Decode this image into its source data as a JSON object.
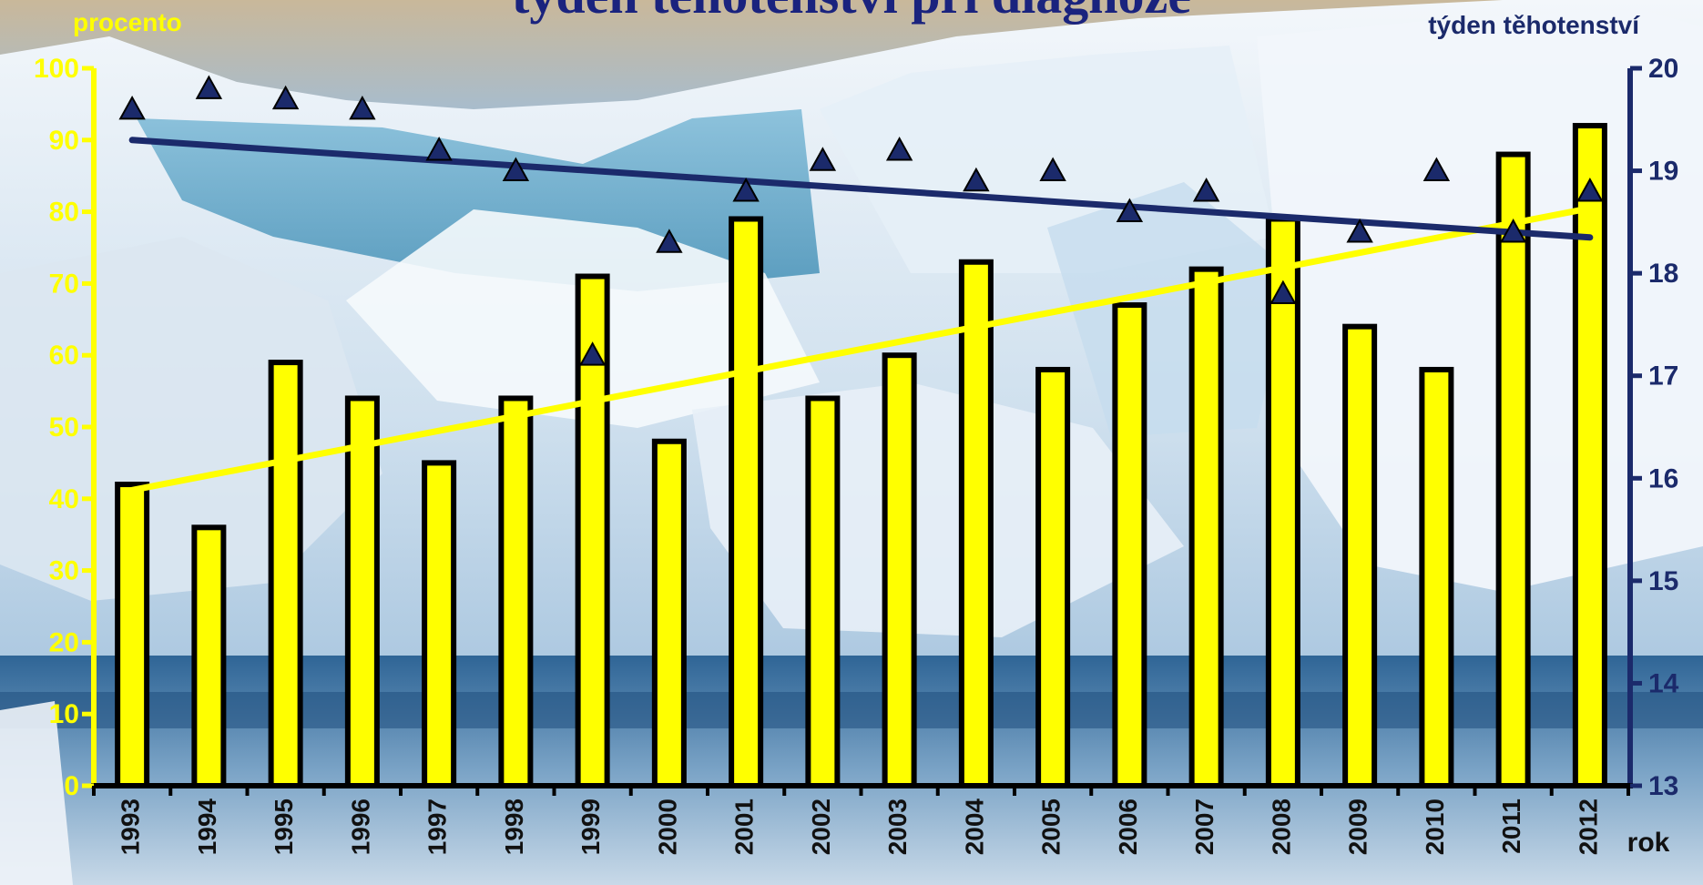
{
  "colors": {
    "bar_fill": "#ffff00",
    "bar_stroke": "#000000",
    "left_axis": "#ffff00",
    "right_axis": "#1b2a6b",
    "marker": "#1b2a6b",
    "trend_percent": "#ffff00",
    "trend_week": "#1b2a6b"
  },
  "chart_data": {
    "type": "bar",
    "title": "týden těhotenství při diagnóze",
    "xlabel": "rok",
    "ylabel_left": "procento",
    "ylabel_right": "týden těhotenství",
    "categories": [
      "1993",
      "1994",
      "1995",
      "1996",
      "1997",
      "1998",
      "1999",
      "2000",
      "2001",
      "2002",
      "2003",
      "2004",
      "2005",
      "2006",
      "2007",
      "2008",
      "2009",
      "2010",
      "2011",
      "2012"
    ],
    "series": [
      {
        "type": "bar",
        "axis": "left",
        "values": [
          42,
          36,
          59,
          54,
          45,
          54,
          71,
          48,
          79,
          54,
          60,
          73,
          58,
          67,
          72,
          79,
          64,
          58,
          88,
          92
        ]
      },
      {
        "type": "scatter",
        "axis": "right",
        "marker": "triangle",
        "values": [
          19.6,
          19.8,
          19.7,
          19.6,
          19.2,
          19.0,
          17.2,
          18.3,
          18.8,
          19.1,
          19.2,
          18.9,
          19.0,
          18.6,
          18.8,
          17.8,
          18.4,
          19.0,
          18.4,
          18.8
        ]
      }
    ],
    "trendlines": [
      {
        "axis": "left",
        "start": 41.2,
        "end": 80.5
      },
      {
        "axis": "right",
        "start": 19.3,
        "end": 18.35
      }
    ],
    "ylim_left": [
      0,
      100
    ],
    "yticks_left": [
      "0",
      "10",
      "20",
      "30",
      "40",
      "50",
      "60",
      "70",
      "80",
      "90",
      "100"
    ],
    "ylim_right": [
      13,
      20
    ],
    "yticks_right": [
      "13",
      "14",
      "15",
      "16",
      "17",
      "18",
      "19",
      "20"
    ],
    "grid": false,
    "legend": "none"
  }
}
